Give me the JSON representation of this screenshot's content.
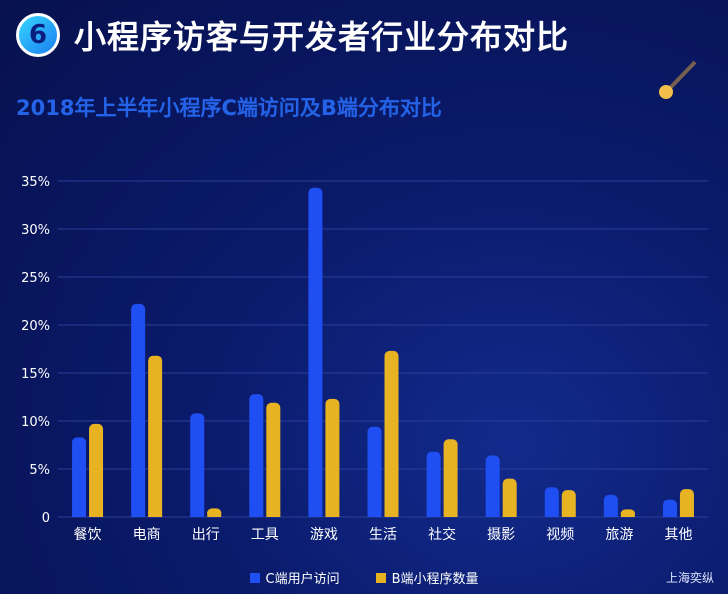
{
  "header": {
    "badge_number": "6",
    "title": "小程序访客与开发者行业分布对比"
  },
  "chart_data": {
    "type": "bar",
    "title": "2018年上半年小程序C端访问及B端分布对比",
    "categories": [
      "餐饮",
      "电商",
      "出行",
      "工具",
      "游戏",
      "生活",
      "社交",
      "摄影",
      "视频",
      "旅游",
      "其他"
    ],
    "series": [
      {
        "name": "C端用户访问",
        "color": "#1f4ff2",
        "values": [
          8.3,
          22.2,
          10.8,
          12.8,
          34.3,
          9.4,
          6.8,
          6.4,
          3.1,
          2.3,
          1.8
        ]
      },
      {
        "name": "B端小程序数量",
        "color": "#e8b322",
        "values": [
          9.7,
          16.8,
          0.9,
          11.9,
          12.3,
          17.3,
          8.1,
          4.0,
          2.8,
          0.8,
          2.9
        ]
      }
    ],
    "y_ticks": [
      "0",
      "5%",
      "10%",
      "15%",
      "20%",
      "25%",
      "30%",
      "35%"
    ],
    "ylim": [
      0,
      35
    ],
    "grid": true,
    "legend_position": "bottom"
  },
  "watermark": "上海奕纵"
}
